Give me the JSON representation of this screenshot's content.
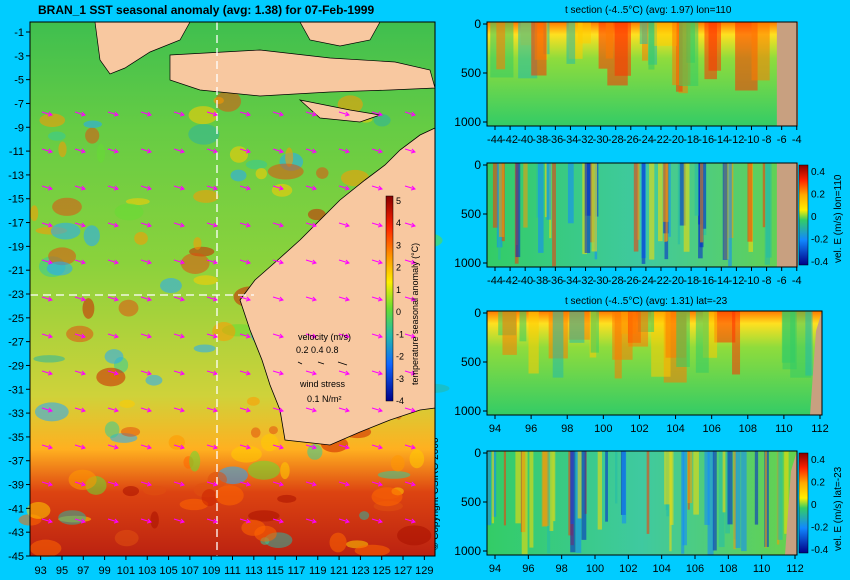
{
  "main_title": "BRAN_1 SST seasonal anomaly (avg: 1.38) for 07-Feb-1999",
  "copyright": "© Copyright CSIRO 2006",
  "colorbar_label": "temperature seasonal anomaly (°C)",
  "velocity_legend": {
    "title": "velocity (m/s)",
    "scale": "0.2 0.4 0.8"
  },
  "wind_legend": {
    "title": "wind stress",
    "value": "0.1 N/m²"
  },
  "colors": {
    "background": "#00ccff",
    "land": "#f8c8a0",
    "section_land": "#c8a080",
    "guide": "#ffffff",
    "vector": "#ff00ff"
  },
  "chart_data": [
    {
      "type": "heatmap",
      "id": "map",
      "title": "BRAN_1 SST seasonal anomaly (avg: 1.38) for 07-Feb-1999",
      "xlim": [
        93,
        130
      ],
      "ylim": [
        -45,
        0
      ],
      "x_ticks": [
        "93",
        "95",
        "97",
        "99",
        "101",
        "103",
        "105",
        "107",
        "109",
        "111",
        "113",
        "115",
        "117",
        "119",
        "121",
        "123",
        "125",
        "127",
        "129"
      ],
      "y_ticks": [
        "-1",
        "-3",
        "-5",
        "-7",
        "-9",
        "-11",
        "-13",
        "-15",
        "-17",
        "-19",
        "-21",
        "-23",
        "-25",
        "-27",
        "-29",
        "-31",
        "-33",
        "-35",
        "-37",
        "-39",
        "-41",
        "-43",
        "-45"
      ],
      "colorbar": {
        "label": "temperature seasonal anomaly (°C)",
        "ticks": [
          "5",
          "4",
          "3",
          "2",
          "1",
          "0",
          "-1",
          "-2",
          "-3",
          "-4"
        ],
        "range": [
          -4,
          5
        ]
      },
      "section_lines": {
        "lon": 110,
        "lat": -23
      }
    },
    {
      "type": "heatmap",
      "id": "t_lon",
      "title": "t section (-4..5°C) (avg: 1.97) lon=110",
      "x_ticks": [
        "-44",
        "-42",
        "-40",
        "-38",
        "-36",
        "-34",
        "-32",
        "-30",
        "-28",
        "-26",
        "-24",
        "-22",
        "-20",
        "-18",
        "-16",
        "-14",
        "-12",
        "-10",
        "-8",
        "-6",
        "-4"
      ],
      "y_ticks": [
        "0",
        "500",
        "1000"
      ]
    },
    {
      "type": "heatmap",
      "id": "v_lon",
      "title": "",
      "x_ticks": [
        "-44",
        "-42",
        "-40",
        "-38",
        "-36",
        "-34",
        "-32",
        "-30",
        "-28",
        "-26",
        "-24",
        "-22",
        "-20",
        "-18",
        "-16",
        "-14",
        "-12",
        "-10",
        "-8",
        "-6",
        "-4"
      ],
      "y_ticks": [
        "0",
        "500",
        "1000"
      ],
      "colorbar": {
        "label": "vel. E (m/s) lon=110",
        "ticks": [
          "0.4",
          "0.2",
          "0",
          "-0.2",
          "-0.4"
        ]
      }
    },
    {
      "type": "heatmap",
      "id": "t_lat",
      "title": "t section (-4..5°C) (avg: 1.31) lat=-23",
      "x_ticks": [
        "94",
        "96",
        "98",
        "100",
        "102",
        "104",
        "106",
        "108",
        "110",
        "112"
      ],
      "y_ticks": [
        "0",
        "500",
        "1000"
      ]
    },
    {
      "type": "heatmap",
      "id": "v_lat",
      "title": "",
      "x_ticks": [
        "94",
        "96",
        "98",
        "100",
        "102",
        "104",
        "106",
        "108",
        "110",
        "112"
      ],
      "y_ticks": [
        "0",
        "500",
        "1000"
      ],
      "colorbar": {
        "label": "vel. E (m/s) lat=-23",
        "ticks": [
          "0.4",
          "0.2",
          "0",
          "-0.2",
          "-0.4"
        ]
      }
    }
  ]
}
